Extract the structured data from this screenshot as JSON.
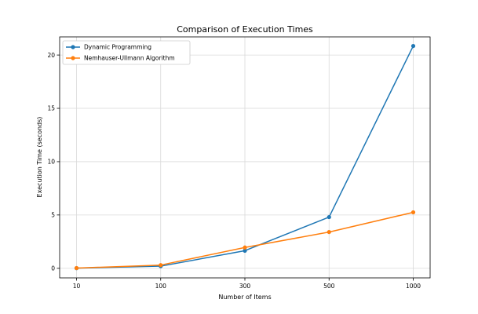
{
  "chart_data": {
    "type": "line",
    "title": "Comparison of Execution Times",
    "xlabel": "Number of Items",
    "ylabel": "Execution Time (seconds)",
    "categories": [
      "10",
      "100",
      "300",
      "500",
      "1000"
    ],
    "y_ticks": [
      "0",
      "5",
      "10",
      "15",
      "20"
    ],
    "ylim": [
      -0.9,
      21.7
    ],
    "grid": true,
    "legend_position": "top-left",
    "series": [
      {
        "name": "Dynamic Programming",
        "values": [
          0.01,
          0.2,
          1.65,
          4.8,
          20.85
        ],
        "color": "#1f77b4"
      },
      {
        "name": "Nemhauser-Ullmann Algorithm",
        "values": [
          0.02,
          0.3,
          1.95,
          3.4,
          5.25
        ],
        "color": "#ff7f0e"
      }
    ]
  }
}
